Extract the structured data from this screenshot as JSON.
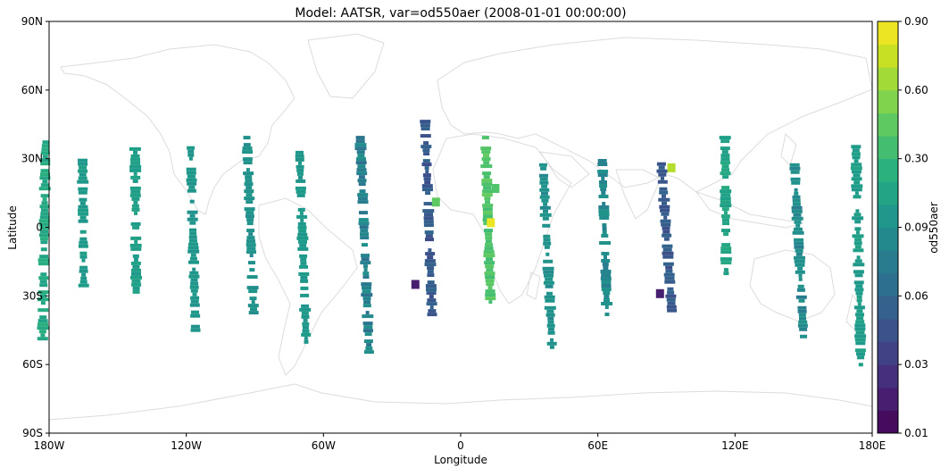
{
  "chart_data": {
    "type": "heatmap",
    "title": "Model: AATSR, var=od550aer (2008-01-01 00:00:00)",
    "xlabel": "Longitude",
    "ylabel": "Latitude",
    "xlim": [
      -180,
      180
    ],
    "ylim": [
      -90,
      90
    ],
    "x_ticks": [
      {
        "value": -180,
        "label": "180W"
      },
      {
        "value": -120,
        "label": "120W"
      },
      {
        "value": -60,
        "label": "60W"
      },
      {
        "value": 0,
        "label": "0"
      },
      {
        "value": 60,
        "label": "60E"
      },
      {
        "value": 120,
        "label": "120E"
      },
      {
        "value": 180,
        "label": "180E"
      }
    ],
    "y_ticks": [
      {
        "value": 90,
        "label": "90N"
      },
      {
        "value": 60,
        "label": "60N"
      },
      {
        "value": 30,
        "label": "30N"
      },
      {
        "value": 0,
        "label": "0"
      },
      {
        "value": -30,
        "label": "30S"
      },
      {
        "value": -60,
        "label": "60S"
      },
      {
        "value": -90,
        "label": "90S"
      }
    ],
    "colorbar": {
      "label": "od550aer",
      "colormap": "viridis",
      "levels": 18,
      "ticks": [
        "0.01",
        "0.03",
        "0.06",
        "0.09",
        "0.30",
        "0.60",
        "0.90"
      ]
    },
    "grid": false,
    "swaths": [
      {
        "lon": -180,
        "lat_top": 38,
        "lat_bottom": -48,
        "tilt": 4,
        "value": 0.22
      },
      {
        "lon": -163,
        "lat_top": 30,
        "lat_bottom": -25,
        "tilt": 6,
        "value": 0.14
      },
      {
        "lon": -140,
        "lat_top": 35,
        "lat_bottom": -28,
        "tilt": 6,
        "value": 0.16
      },
      {
        "lon": -115,
        "lat_top": 37,
        "lat_bottom": -45,
        "tilt": 8,
        "value": 0.12
      },
      {
        "lon": -90,
        "lat_top": 40,
        "lat_bottom": -38,
        "tilt": 9,
        "value": 0.1
      },
      {
        "lon": -67,
        "lat_top": 35,
        "lat_bottom": -52,
        "tilt": 9,
        "value": 0.13
      },
      {
        "lon": -40,
        "lat_top": 40,
        "lat_bottom": -55,
        "tilt": 10,
        "value": 0.08
      },
      {
        "lon": -12,
        "lat_top": 47,
        "lat_bottom": -38,
        "tilt": 9,
        "value": 0.05
      },
      {
        "lon": 14,
        "lat_top": 40,
        "lat_bottom": -32,
        "tilt": 8,
        "value": 0.4
      },
      {
        "lon": 40,
        "lat_top": 28,
        "lat_bottom": -52,
        "tilt": 10,
        "value": 0.1
      },
      {
        "lon": 65,
        "lat_top": 33,
        "lat_bottom": -38,
        "tilt": 8,
        "value": 0.09
      },
      {
        "lon": 92,
        "lat_top": 30,
        "lat_bottom": -37,
        "tilt": 11,
        "value": 0.05
      },
      {
        "lon": 118,
        "lat_top": 40,
        "lat_bottom": -20,
        "tilt": 6,
        "value": 0.2
      },
      {
        "lon": 150,
        "lat_top": 28,
        "lat_bottom": -48,
        "tilt": 10,
        "value": 0.09
      },
      {
        "lon": 176,
        "lat_top": 36,
        "lat_bottom": -60,
        "tilt": 8,
        "value": 0.16
      }
    ],
    "hotspots": [
      {
        "lon": 13,
        "lat": 2,
        "value": 0.85
      },
      {
        "lon": 15,
        "lat": 17,
        "value": 0.4
      },
      {
        "lon": -11,
        "lat": 11,
        "value": 0.45
      },
      {
        "lon": 92,
        "lat": 26,
        "value": 0.7
      },
      {
        "lon": -20,
        "lat": -25,
        "value": 0.02
      },
      {
        "lon": 87,
        "lat": -29,
        "value": 0.02
      }
    ]
  }
}
